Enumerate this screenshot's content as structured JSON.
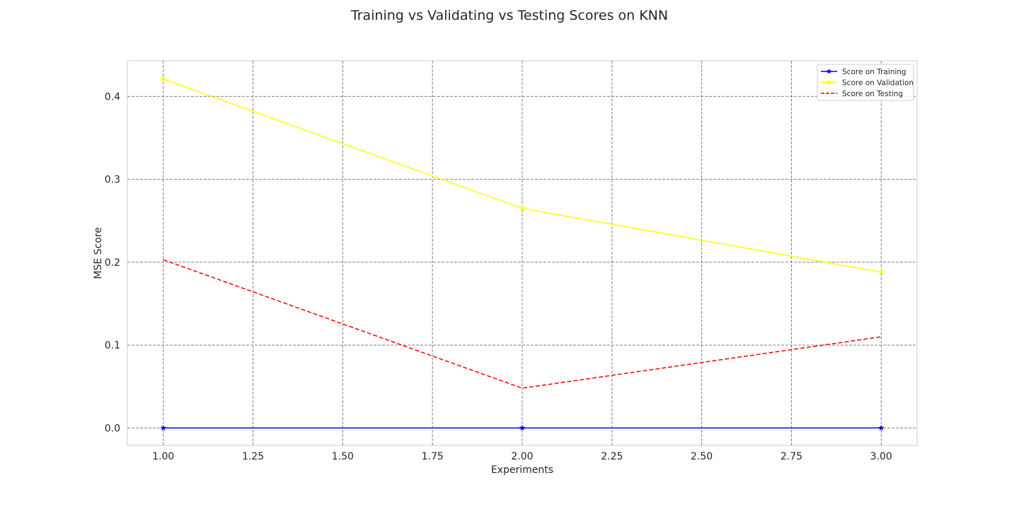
{
  "chart_data": {
    "type": "line",
    "title": "Training vs Validating vs Testing Scores on KNN",
    "xlabel": "Experiments",
    "ylabel": "MSE Score",
    "x": [
      1,
      2,
      3
    ],
    "xlim": [
      0.9,
      3.1
    ],
    "ylim": [
      -0.021,
      0.443
    ],
    "xticks": [
      1.0,
      1.25,
      1.5,
      1.75,
      2.0,
      2.25,
      2.5,
      2.75,
      3.0
    ],
    "xtick_labels": [
      "1.00",
      "1.25",
      "1.50",
      "1.75",
      "2.00",
      "2.25",
      "2.50",
      "2.75",
      "3.00"
    ],
    "yticks": [
      0.0,
      0.1,
      0.2,
      0.3,
      0.4
    ],
    "ytick_labels": [
      "0.0",
      "0.1",
      "0.2",
      "0.3",
      "0.4"
    ],
    "grid": true,
    "legend_position": "top-right",
    "series": [
      {
        "name": "Score on Training",
        "values": [
          0.0,
          0.0,
          0.0
        ],
        "color": "#0000ff",
        "style": "solid",
        "marker": "star"
      },
      {
        "name": "Score on Validation",
        "values": [
          0.421,
          0.265,
          0.188
        ],
        "color": "#ffff00",
        "style": "solid",
        "marker": "star"
      },
      {
        "name": "Score on Testing",
        "values": [
          0.203,
          0.048,
          0.11
        ],
        "color": "#ff0000",
        "style": "dashed",
        "marker": "none"
      }
    ]
  }
}
